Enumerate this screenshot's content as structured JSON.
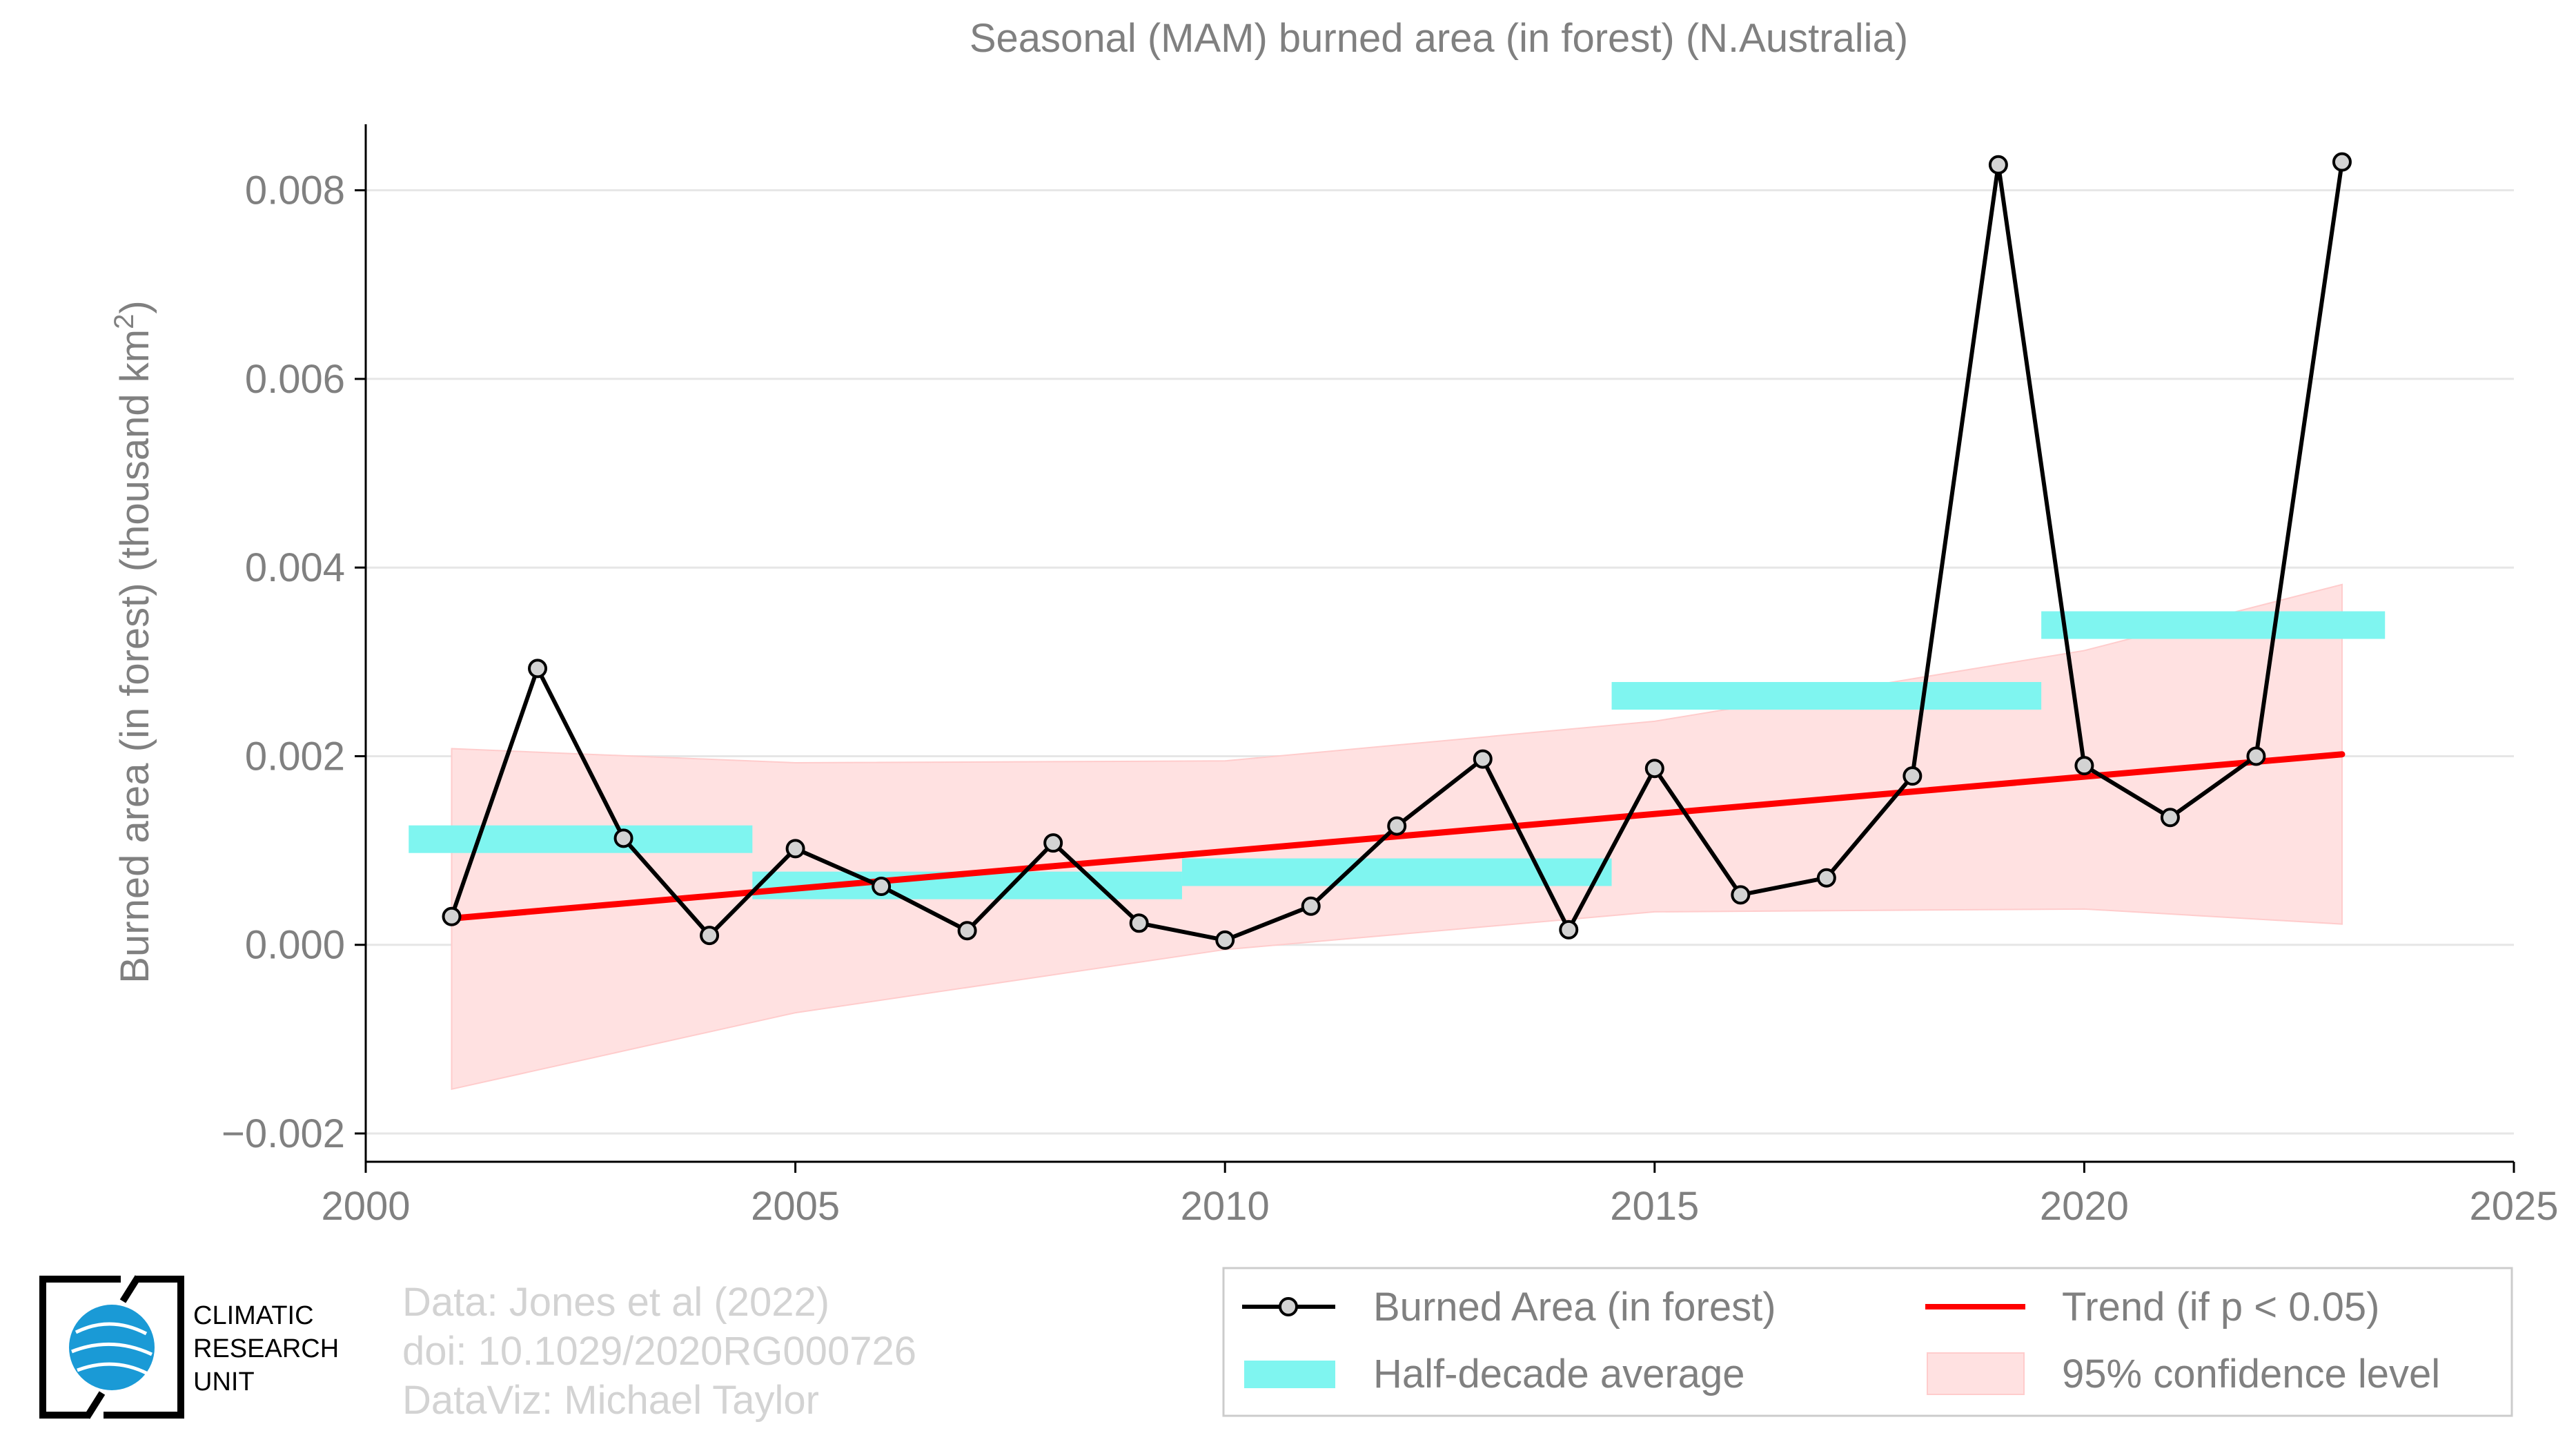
{
  "chart_data": {
    "type": "line",
    "title": "Seasonal (MAM) burned area (in forest) (N.Australia)",
    "ylabel": "Burned area (in forest) (thousand km",
    "ylabel_sup": "2",
    "ylabel_end": ")",
    "xlabel": "",
    "xlim": [
      2000,
      2025
    ],
    "ylim": [
      -0.0023,
      0.0087
    ],
    "x_ticks": [
      2000,
      2005,
      2010,
      2015,
      2020,
      2025
    ],
    "y_ticks": [
      -0.002,
      0.0,
      0.002,
      0.004,
      0.006,
      0.008
    ],
    "y_tick_labels": [
      "−0.002",
      "0.000",
      "0.002",
      "0.004",
      "0.006",
      "0.008"
    ],
    "grid": "horizontal",
    "series": [
      {
        "name": "Burned Area (in forest)",
        "color": "#000000",
        "marker_fill": "#d3d3d3",
        "x": [
          2001,
          2002,
          2003,
          2004,
          2005,
          2006,
          2007,
          2008,
          2009,
          2010,
          2011,
          2012,
          2013,
          2014,
          2015,
          2016,
          2017,
          2018,
          2019,
          2020,
          2021,
          2022,
          2023
        ],
        "y": [
          0.0003,
          0.00293,
          0.00113,
          0.0001,
          0.00102,
          0.00062,
          0.00015,
          0.00108,
          0.00023,
          5e-05,
          0.00041,
          0.00126,
          0.00197,
          0.00016,
          0.00187,
          0.00053,
          0.00071,
          0.00179,
          0.00827,
          0.0019,
          0.00135,
          0.002,
          0.0083
        ]
      },
      {
        "name": "Trend (if p < 0.05)",
        "color": "#ff0000",
        "x": [
          2001,
          2023
        ],
        "y": [
          0.00028,
          0.00202
        ]
      },
      {
        "name": "Half-decade average",
        "color": "#7ff5f0",
        "segments": [
          {
            "x0": 2000.5,
            "x1": 2004.5,
            "y": 0.00112
          },
          {
            "x0": 2004.5,
            "x1": 2009.5,
            "y": 0.00063
          },
          {
            "x0": 2009.5,
            "x1": 2014.5,
            "y": 0.00077
          },
          {
            "x0": 2014.5,
            "x1": 2019.5,
            "y": 0.00264
          },
          {
            "x0": 2019.5,
            "x1": 2023.5,
            "y": 0.00339
          }
        ]
      },
      {
        "name": "95% confidence level",
        "color": "#ffe1e1",
        "x": [
          2001,
          2005,
          2010,
          2015,
          2020,
          2023
        ],
        "upper": [
          0.00208,
          0.00193,
          0.00195,
          0.00237,
          0.00312,
          0.00382
        ],
        "lower": [
          -0.00153,
          -0.00072,
          -5e-05,
          0.00035,
          0.00038,
          0.00022
        ]
      }
    ],
    "legend": {
      "placement": "bottom-right",
      "items": [
        {
          "label": "Burned Area (in forest)",
          "kind": "line-marker"
        },
        {
          "label": "Trend (if p < 0.05)",
          "kind": "line"
        },
        {
          "label": "Half-decade average",
          "kind": "bar"
        },
        {
          "label": "95% confidence level",
          "kind": "patch"
        }
      ]
    }
  },
  "footer": {
    "logo_line1": "CLIMATIC",
    "logo_line2": "RESEARCH",
    "logo_line3": "UNIT",
    "credit_line1": "Data: Jones et al (2022)",
    "credit_line2": "doi: 10.1029/2020RG000726",
    "credit_line3": "DataViz: Michael Taylor"
  }
}
